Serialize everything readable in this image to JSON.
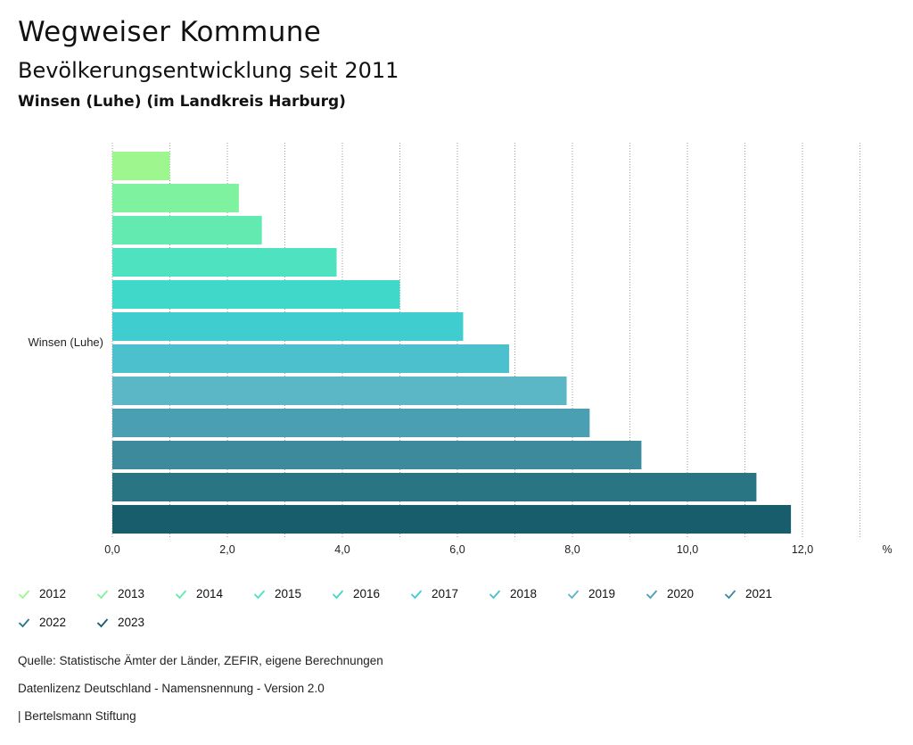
{
  "header": {
    "title": "Wegweiser Kommune",
    "subtitle": "Bevölkerungsentwicklung seit 2011",
    "region": "Winsen (Luhe) (im Landkreis Harburg)"
  },
  "chart_data": {
    "type": "bar",
    "orientation": "horizontal",
    "categories": [
      "Winsen (Luhe)"
    ],
    "series": [
      {
        "name": "2012",
        "values": [
          1.0
        ],
        "color": "#9ef78e"
      },
      {
        "name": "2013",
        "values": [
          2.2
        ],
        "color": "#7ff2a0"
      },
      {
        "name": "2014",
        "values": [
          2.6
        ],
        "color": "#62eab0"
      },
      {
        "name": "2015",
        "values": [
          3.9
        ],
        "color": "#4ee2c0"
      },
      {
        "name": "2016",
        "values": [
          5.0
        ],
        "color": "#40d8c8"
      },
      {
        "name": "2017",
        "values": [
          6.1
        ],
        "color": "#40cdd0"
      },
      {
        "name": "2018",
        "values": [
          6.9
        ],
        "color": "#4cc0cc"
      },
      {
        "name": "2019",
        "values": [
          7.9
        ],
        "color": "#5bb6c6"
      },
      {
        "name": "2020",
        "values": [
          8.3
        ],
        "color": "#4a9fb2"
      },
      {
        "name": "2021",
        "values": [
          9.2
        ],
        "color": "#3c8a9c"
      },
      {
        "name": "2022",
        "values": [
          11.2
        ],
        "color": "#2a7584"
      },
      {
        "name": "2023",
        "values": [
          11.8
        ],
        "color": "#175d6c"
      }
    ],
    "xlim": [
      0,
      13
    ],
    "xticks": [
      "0,0",
      "2,0",
      "4,0",
      "6,0",
      "8,0",
      "10,0",
      "12,0"
    ],
    "xtick_values": [
      0,
      2,
      4,
      6,
      8,
      10,
      12
    ],
    "unit": "%",
    "grid": true,
    "legend_position": "bottom"
  },
  "footer": {
    "source": "Quelle: Statistische Ämter der Länder, ZEFIR, eigene Berechnungen",
    "license": "Datenlizenz Deutschland - Namensnennung - Version 2.0",
    "publisher": "| Bertelsmann Stiftung"
  }
}
